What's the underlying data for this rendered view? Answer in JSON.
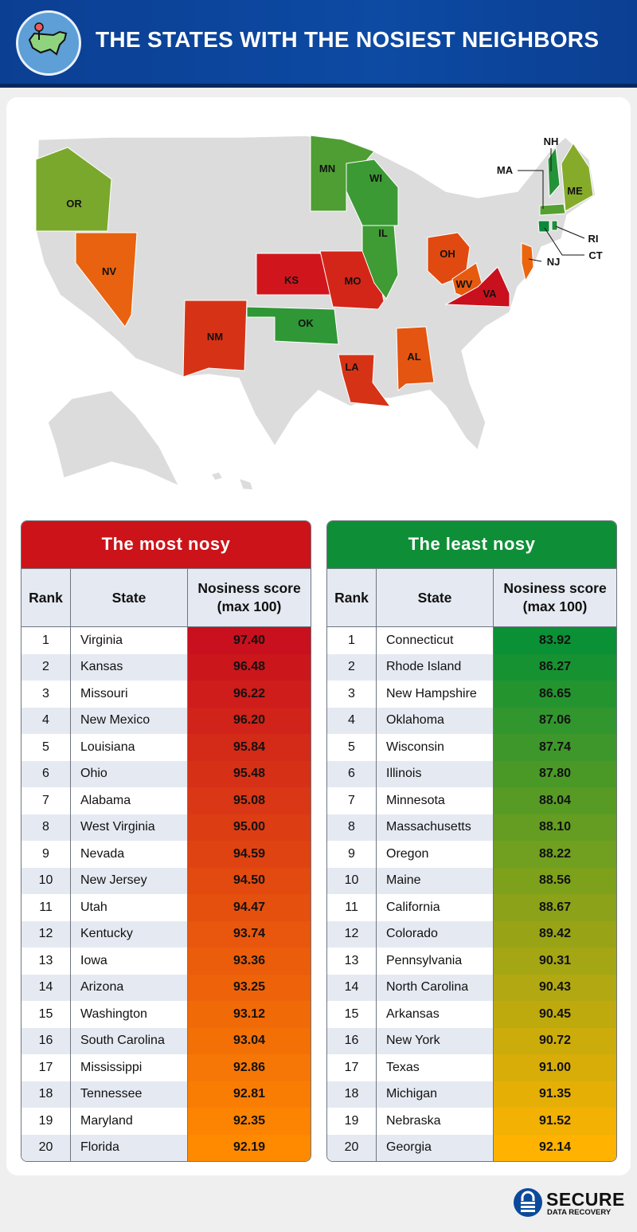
{
  "header": {
    "title": "THE STATES WITH THE NOSIEST NEIGHBORS",
    "icon": "us-map-pin-icon"
  },
  "map": {
    "base_color": "#dcdcdc",
    "states": [
      {
        "abbr": "OR",
        "color": "#7aa82c"
      },
      {
        "abbr": "NV",
        "color": "#e8620f"
      },
      {
        "abbr": "NM",
        "color": "#d63316"
      },
      {
        "abbr": "KS",
        "color": "#d0161c"
      },
      {
        "abbr": "MO",
        "color": "#d42618"
      },
      {
        "abbr": "OK",
        "color": "#2f9736"
      },
      {
        "abbr": "LA",
        "color": "#d63316"
      },
      {
        "abbr": "AL",
        "color": "#e35510"
      },
      {
        "abbr": "MN",
        "color": "#4f9e33"
      },
      {
        "abbr": "WI",
        "color": "#3c9a35"
      },
      {
        "abbr": "IL",
        "color": "#3f9b34"
      },
      {
        "abbr": "OH",
        "color": "#e04a10"
      },
      {
        "abbr": "WV",
        "color": "#e65a10"
      },
      {
        "abbr": "VA",
        "color": "#c8101e"
      },
      {
        "abbr": "NJ",
        "color": "#ea650e"
      },
      {
        "abbr": "NH",
        "color": "#249238"
      },
      {
        "abbr": "ME",
        "color": "#86ab2a"
      },
      {
        "abbr": "MA",
        "color": "#56a032"
      },
      {
        "abbr": "CT",
        "color": "#0a8a3a"
      },
      {
        "abbr": "RI",
        "color": "#1e8f3a"
      }
    ]
  },
  "chart_data": [
    {
      "type": "table",
      "title": "The most nosy",
      "header_color": "#cc1319",
      "score_gradient": [
        "#c8101e",
        "#ff8a00"
      ],
      "columns": [
        "Rank",
        "State",
        "Nosiness score (max 100)"
      ],
      "rows": [
        [
          1,
          "Virginia",
          "97.40"
        ],
        [
          2,
          "Kansas",
          "96.48"
        ],
        [
          3,
          "Missouri",
          "96.22"
        ],
        [
          4,
          "New Mexico",
          "96.20"
        ],
        [
          5,
          "Louisiana",
          "95.84"
        ],
        [
          6,
          "Ohio",
          "95.48"
        ],
        [
          7,
          "Alabama",
          "95.08"
        ],
        [
          8,
          "West Virginia",
          "95.00"
        ],
        [
          9,
          "Nevada",
          "94.59"
        ],
        [
          10,
          "New Jersey",
          "94.50"
        ],
        [
          11,
          "Utah",
          "94.47"
        ],
        [
          12,
          "Kentucky",
          "93.74"
        ],
        [
          13,
          "Iowa",
          "93.36"
        ],
        [
          14,
          "Arizona",
          "93.25"
        ],
        [
          15,
          "Washington",
          "93.12"
        ],
        [
          16,
          "South Carolina",
          "93.04"
        ],
        [
          17,
          "Mississippi",
          "92.86"
        ],
        [
          18,
          "Tennessee",
          "92.81"
        ],
        [
          19,
          "Maryland",
          "92.35"
        ],
        [
          20,
          "Florida",
          "92.19"
        ]
      ]
    },
    {
      "type": "table",
      "title": "The least nosy",
      "header_color": "#0e8f37",
      "score_gradient": [
        "#0a9035",
        "#ffb300"
      ],
      "columns": [
        "Rank",
        "State",
        "Nosiness score (max 100)"
      ],
      "rows": [
        [
          1,
          "Connecticut",
          "83.92"
        ],
        [
          2,
          "Rhode Island",
          "86.27"
        ],
        [
          3,
          "New Hampshire",
          "86.65"
        ],
        [
          4,
          "Oklahoma",
          "87.06"
        ],
        [
          5,
          "Wisconsin",
          "87.74"
        ],
        [
          6,
          "Illinois",
          "87.80"
        ],
        [
          7,
          "Minnesota",
          "88.04"
        ],
        [
          8,
          "Massachusetts",
          "88.10"
        ],
        [
          9,
          "Oregon",
          "88.22"
        ],
        [
          10,
          "Maine",
          "88.56"
        ],
        [
          11,
          "California",
          "88.67"
        ],
        [
          12,
          "Colorado",
          "89.42"
        ],
        [
          13,
          "Pennsylvania",
          "90.31"
        ],
        [
          14,
          "North Carolina",
          "90.43"
        ],
        [
          15,
          "Arkansas",
          "90.45"
        ],
        [
          16,
          "New York",
          "90.72"
        ],
        [
          17,
          "Texas",
          "91.00"
        ],
        [
          18,
          "Michigan",
          "91.35"
        ],
        [
          19,
          "Nebraska",
          "91.52"
        ],
        [
          20,
          "Georgia",
          "92.14"
        ]
      ]
    }
  ],
  "brand": {
    "name": "SECURE",
    "tagline": "DATA RECOVERY",
    "icon": "padlock-icon",
    "color": "#0b4a9a"
  }
}
